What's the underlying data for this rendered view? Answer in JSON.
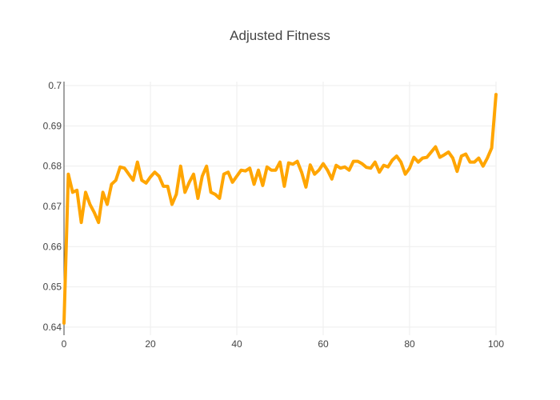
{
  "chart_data": {
    "type": "line",
    "title": "Adjusted Fitness",
    "xlabel": "",
    "ylabel": "",
    "xlim": [
      0,
      100
    ],
    "ylim": [
      0.638,
      0.701
    ],
    "x_ticks": [
      0,
      20,
      40,
      60,
      80,
      100
    ],
    "y_ticks": [
      0.64,
      0.65,
      0.66,
      0.67,
      0.68,
      0.69,
      0.7
    ],
    "grid": true,
    "legend": "none",
    "series_color": "#FFA500",
    "series": [
      {
        "values": [
          0.641,
          0.678,
          0.6735,
          0.674,
          0.666,
          0.6735,
          0.6705,
          0.6685,
          0.666,
          0.6735,
          0.6705,
          0.6755,
          0.6765,
          0.6798,
          0.6795,
          0.678,
          0.6765,
          0.681,
          0.6765,
          0.6758,
          0.6773,
          0.6785,
          0.6775,
          0.675,
          0.675,
          0.6705,
          0.673,
          0.68,
          0.6735,
          0.676,
          0.678,
          0.672,
          0.6775,
          0.68,
          0.6735,
          0.673,
          0.672,
          0.678,
          0.6785,
          0.676,
          0.6775,
          0.679,
          0.6788,
          0.6795,
          0.6755,
          0.679,
          0.6752,
          0.6798,
          0.679,
          0.679,
          0.681,
          0.675,
          0.6808,
          0.6805,
          0.6812,
          0.6785,
          0.6748,
          0.6803,
          0.678,
          0.679,
          0.6806,
          0.679,
          0.6768,
          0.6802,
          0.6795,
          0.6798,
          0.679,
          0.6812,
          0.6812,
          0.6806,
          0.6797,
          0.6795,
          0.681,
          0.6785,
          0.6802,
          0.6798,
          0.6815,
          0.6825,
          0.681,
          0.678,
          0.6795,
          0.6822,
          0.681,
          0.682,
          0.6822,
          0.6835,
          0.6848,
          0.6822,
          0.6828,
          0.6835,
          0.682,
          0.6787,
          0.6825,
          0.683,
          0.681,
          0.681,
          0.682,
          0.68,
          0.682,
          0.6845,
          0.6978
        ]
      }
    ]
  }
}
